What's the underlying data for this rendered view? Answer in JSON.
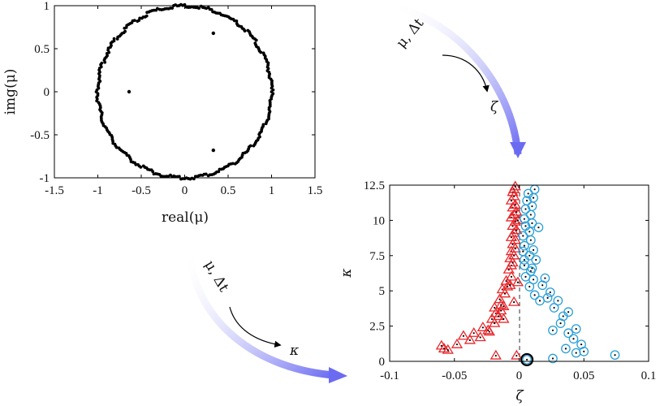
{
  "chart_data": [
    {
      "type": "scatter",
      "xlabel": "real(μ)",
      "ylabel": "img(μ)",
      "xlim": [
        -1.5,
        1.5
      ],
      "ylim": [
        -1,
        1
      ],
      "xticks": [
        "-1.5",
        "-1",
        "-0.5",
        "0",
        "0.5",
        "1",
        "1.5"
      ],
      "yticks": [
        "-1",
        "-0.5",
        "0",
        "0.5",
        "1"
      ],
      "marker_color": "#000000",
      "series": [
        {
          "points_on_unit_circle": 300,
          "circle_radius": 1.0
        },
        {
          "points": [
            [
              -0.64,
              0.0
            ],
            [
              0.33,
              0.68
            ],
            [
              0.33,
              -0.68
            ]
          ]
        }
      ],
      "grid": false
    },
    {
      "type": "scatter",
      "xlabel": "ζ",
      "ylabel": "κ",
      "xlim": [
        -0.1,
        0.1
      ],
      "ylim": [
        0,
        12.5
      ],
      "xticks": [
        "-0.1",
        "-0.05",
        "0",
        "0.05",
        "0.1"
      ],
      "yticks": [
        "0",
        "2.5",
        "5",
        "7.5",
        "10",
        "12.5"
      ],
      "reference_line": {
        "x": 0,
        "style": "dashed"
      },
      "grid": false,
      "series": [
        {
          "marker": "triangle",
          "color": "#e8262b",
          "points": [
            [
              -0.06,
              1.1
            ],
            [
              -0.058,
              0.9
            ],
            [
              -0.055,
              0.8
            ],
            [
              -0.048,
              1.2
            ],
            [
              -0.043,
              1.8
            ],
            [
              -0.038,
              1.5
            ],
            [
              -0.035,
              2.0
            ],
            [
              -0.03,
              1.7
            ],
            [
              -0.028,
              2.4
            ],
            [
              -0.024,
              2.2
            ],
            [
              -0.021,
              3.0
            ],
            [
              -0.019,
              2.7
            ],
            [
              -0.018,
              3.4
            ],
            [
              -0.016,
              3.2
            ],
            [
              -0.014,
              3.6
            ],
            [
              -0.012,
              3.9
            ],
            [
              -0.015,
              4.4
            ],
            [
              -0.011,
              4.8
            ],
            [
              -0.013,
              5.1
            ],
            [
              -0.009,
              5.3
            ],
            [
              -0.01,
              5.7
            ],
            [
              -0.007,
              5.4
            ],
            [
              -0.006,
              6.0
            ],
            [
              -0.008,
              6.5
            ],
            [
              -0.006,
              6.8
            ],
            [
              -0.005,
              7.0
            ],
            [
              -0.007,
              7.3
            ],
            [
              -0.004,
              7.5
            ],
            [
              -0.006,
              7.8
            ],
            [
              -0.003,
              8.0
            ],
            [
              -0.005,
              8.3
            ],
            [
              -0.003,
              8.6
            ],
            [
              -0.006,
              8.8
            ],
            [
              -0.004,
              9.1
            ],
            [
              -0.002,
              9.3
            ],
            [
              -0.005,
              9.6
            ],
            [
              -0.003,
              9.9
            ],
            [
              -0.006,
              10.2
            ],
            [
              -0.004,
              10.4
            ],
            [
              -0.002,
              10.6
            ],
            [
              -0.005,
              10.9
            ],
            [
              -0.003,
              11.1
            ],
            [
              -0.006,
              11.4
            ],
            [
              -0.004,
              11.7
            ],
            [
              -0.005,
              12.0
            ],
            [
              -0.004,
              12.2
            ],
            [
              -0.003,
              12.4
            ],
            [
              -0.001,
              10.0
            ],
            [
              -0.019,
              3.8
            ],
            [
              -0.014,
              4.0
            ],
            [
              -0.012,
              3.0
            ],
            [
              -0.023,
              2.1
            ],
            [
              -0.002,
              0.4
            ],
            [
              -0.018,
              0.4
            ],
            [
              -0.001,
              5.6
            ],
            [
              -0.004,
              4.2
            ]
          ]
        },
        {
          "marker": "circle",
          "color": "#2a9fd6",
          "points": [
            [
              0.006,
              0.12
            ],
            [
              0.026,
              0.2
            ],
            [
              0.074,
              0.45
            ],
            [
              0.044,
              0.6
            ],
            [
              0.05,
              0.7
            ],
            [
              0.036,
              0.9
            ],
            [
              0.048,
              1.2
            ],
            [
              0.042,
              1.6
            ],
            [
              0.038,
              2.0
            ],
            [
              0.044,
              2.3
            ],
            [
              0.032,
              2.7
            ],
            [
              0.026,
              2.2
            ],
            [
              0.034,
              3.2
            ],
            [
              0.038,
              3.5
            ],
            [
              0.027,
              3.8
            ],
            [
              0.03,
              4.3
            ],
            [
              0.022,
              4.5
            ],
            [
              0.016,
              4.3
            ],
            [
              0.024,
              4.9
            ],
            [
              0.012,
              4.7
            ],
            [
              0.018,
              5.4
            ],
            [
              0.008,
              5.3
            ],
            [
              0.011,
              5.8
            ],
            [
              0.005,
              6.0
            ],
            [
              0.009,
              6.4
            ],
            [
              0.004,
              6.8
            ],
            [
              0.01,
              6.6
            ],
            [
              0.004,
              7.2
            ],
            [
              0.008,
              7.5
            ],
            [
              0.003,
              7.8
            ],
            [
              0.011,
              7.9
            ],
            [
              0.004,
              8.2
            ],
            [
              0.009,
              8.6
            ],
            [
              0.003,
              8.9
            ],
            [
              0.008,
              9.2
            ],
            [
              0.005,
              9.6
            ],
            [
              0.01,
              9.8
            ],
            [
              0.004,
              10.1
            ],
            [
              0.009,
              10.4
            ],
            [
              0.005,
              10.8
            ],
            [
              0.01,
              11.0
            ],
            [
              0.006,
              11.4
            ],
            [
              0.011,
              11.6
            ],
            [
              0.007,
              11.9
            ],
            [
              0.012,
              12.2
            ],
            [
              0.015,
              9.5
            ],
            [
              0.013,
              7.2
            ],
            [
              0.02,
              5.9
            ]
          ]
        },
        {
          "marker": "highlighted-circle",
          "color": "#000000",
          "points": [
            [
              0.006,
              0.12
            ]
          ]
        }
      ]
    }
  ],
  "annotations": {
    "arrow_top": {
      "label_line1": "μ, Δt",
      "label_line2": "ζ"
    },
    "arrow_bottom": {
      "label_line1": "μ, Δt",
      "label_line2": "κ"
    },
    "arrow_color": "#6b6bf2"
  }
}
